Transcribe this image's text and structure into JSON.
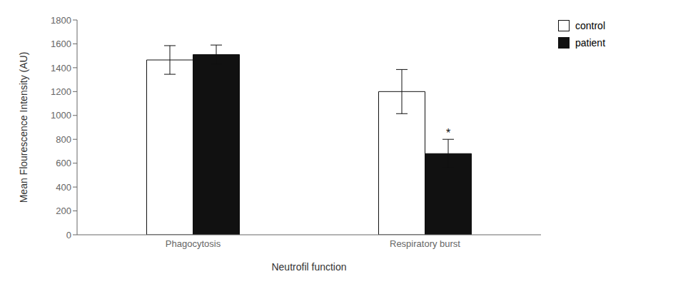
{
  "chart_data": {
    "type": "bar",
    "categories": [
      "Phagocytosis",
      "Respiratory burst"
    ],
    "series": [
      {
        "name": "control",
        "color": "#ffffff",
        "values": [
          1465,
          1200
        ],
        "errors": [
          120,
          185
        ]
      },
      {
        "name": "patient",
        "color": "#111111",
        "values": [
          1510,
          680
        ],
        "errors": [
          80,
          120
        ]
      }
    ],
    "xlabel": "Neutrofil function",
    "ylabel": "Mean Flourescence Intensity (AU)",
    "ylim": [
      0,
      1800
    ],
    "yticks": [
      0,
      200,
      400,
      600,
      800,
      1000,
      1200,
      1400,
      1600,
      1800
    ],
    "annotations": [
      {
        "text": "*",
        "category": "Respiratory burst",
        "series": "patient",
        "y": 810
      }
    ],
    "legend": "right",
    "grid": false
  }
}
